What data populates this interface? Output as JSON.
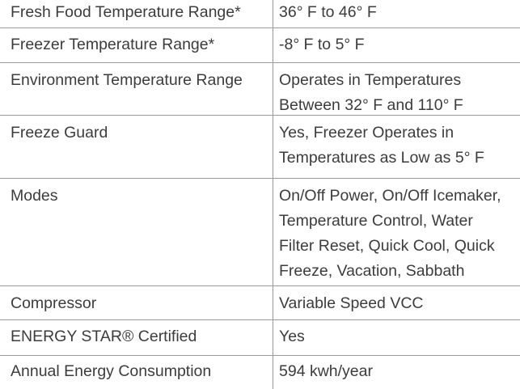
{
  "table": {
    "rows": [
      {
        "label": "Fresh Food Temperature Range*",
        "value": [
          "36° F to 46° F"
        ]
      },
      {
        "label": "Freezer Temperature Range*",
        "value": [
          "-8° F to 5° F"
        ]
      },
      {
        "label": "Environment Temperature Range",
        "value": [
          "Operates in Temperatures",
          "Between 32° F and 110° F"
        ]
      },
      {
        "label": "Freeze Guard",
        "value": [
          "Yes, Freezer Operates in",
          "Temperatures as Low as 5° F"
        ]
      },
      {
        "label": "Modes",
        "value": [
          "On/Off Power, On/Off Icemaker,",
          "Temperature Control, Water",
          "Filter Reset, Quick Cool, Quick",
          "Freeze, Vacation, Sabbath"
        ]
      },
      {
        "label": "Compressor",
        "value": [
          "Variable Speed VCC"
        ]
      },
      {
        "label": "ENERGY STAR® Certified",
        "value": [
          "Yes"
        ]
      },
      {
        "label": "Annual Energy Consumption",
        "value": [
          "594 kwh/year"
        ]
      }
    ]
  }
}
